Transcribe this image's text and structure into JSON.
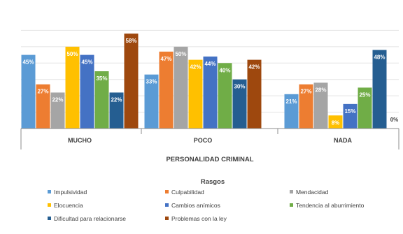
{
  "chart_data": {
    "type": "bar",
    "title": "",
    "xlabel": "PERSONALIDAD CRIMINAL",
    "ylabel": "",
    "ylim": [
      0,
      70
    ],
    "grid": true,
    "legend_title": "Rasgos",
    "legend_position": "bottom",
    "categories": [
      "MUCHO",
      "POCO",
      "NADA"
    ],
    "series": [
      {
        "name": "Impulsividad",
        "color": "#5b9bd5",
        "values": [
          45,
          33,
          21
        ],
        "labels": [
          "45%",
          "33%",
          "21%"
        ]
      },
      {
        "name": "Culpabilidad",
        "color": "#ed7d31",
        "values": [
          27,
          47,
          27
        ],
        "labels": [
          "27%",
          "47%",
          "27%"
        ]
      },
      {
        "name": "Mendacidad",
        "color": "#a5a5a5",
        "values": [
          22,
          50,
          28
        ],
        "labels": [
          "22%",
          "50%",
          "28%"
        ]
      },
      {
        "name": "Elocuencia",
        "color": "#ffc000",
        "values": [
          50,
          42,
          8
        ],
        "labels": [
          "50%",
          "42%",
          "8%"
        ]
      },
      {
        "name": "Cambios anímicos",
        "color": "#4472c4",
        "values": [
          45,
          44,
          15
        ],
        "labels": [
          "45%",
          "44%",
          "15%"
        ]
      },
      {
        "name": "Tendencia al aburrimiento",
        "color": "#70ad47",
        "values": [
          35,
          40,
          25
        ],
        "labels": [
          "35%",
          "40%",
          "25%"
        ]
      },
      {
        "name": "Dificultad para relacionarse",
        "color": "#255e91",
        "values": [
          22,
          30,
          48
        ],
        "labels": [
          "22%",
          "30%",
          "48%"
        ]
      },
      {
        "name": "Problemas con la ley",
        "color": "#9e480e",
        "values": [
          58,
          42,
          0
        ],
        "labels": [
          "58%",
          "42%",
          "0%"
        ]
      }
    ]
  }
}
